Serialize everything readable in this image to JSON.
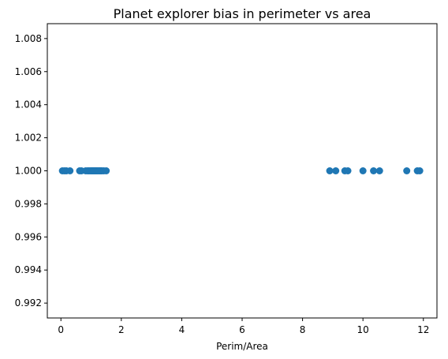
{
  "chart_data": {
    "type": "scatter",
    "title": "Planet explorer bias in perimeter vs area",
    "xlabel": "Perim/Area",
    "ylabel": "",
    "xlim": [
      -0.45,
      12.45
    ],
    "ylim": [
      0.9911,
      1.0089
    ],
    "x_ticks": [
      0,
      2,
      4,
      6,
      8,
      10,
      12
    ],
    "x_tick_labels": [
      "0",
      "2",
      "4",
      "6",
      "8",
      "10",
      "12"
    ],
    "y_ticks": [
      0.992,
      0.994,
      0.996,
      0.998,
      1.0,
      1.002,
      1.004,
      1.006,
      1.008
    ],
    "y_tick_labels": [
      "0.992",
      "0.994",
      "0.996",
      "0.998",
      "1.000",
      "1.002",
      "1.004",
      "1.006",
      "1.008"
    ],
    "grid": false,
    "marker_color": "#1f77b4",
    "points": {
      "x": [
        0.05,
        0.12,
        0.18,
        0.3,
        0.62,
        0.68,
        0.82,
        0.88,
        0.92,
        0.96,
        1.0,
        1.03,
        1.06,
        1.09,
        1.12,
        1.15,
        1.18,
        1.21,
        1.25,
        1.28,
        1.32,
        1.36,
        1.42,
        1.5,
        8.9,
        9.1,
        9.4,
        9.5,
        10.0,
        10.35,
        10.55,
        11.45,
        11.8,
        11.88
      ],
      "y": [
        1.0,
        1.0,
        1.0,
        1.0,
        1.0,
        1.0,
        1.0,
        1.0,
        1.0,
        1.0,
        1.0,
        1.0,
        1.0,
        1.0,
        1.0,
        1.0,
        1.0,
        1.0,
        1.0,
        1.0,
        1.0,
        1.0,
        1.0,
        1.0,
        1.0,
        1.0,
        1.0,
        1.0,
        1.0,
        1.0,
        1.0,
        1.0,
        1.0,
        1.0
      ]
    }
  }
}
